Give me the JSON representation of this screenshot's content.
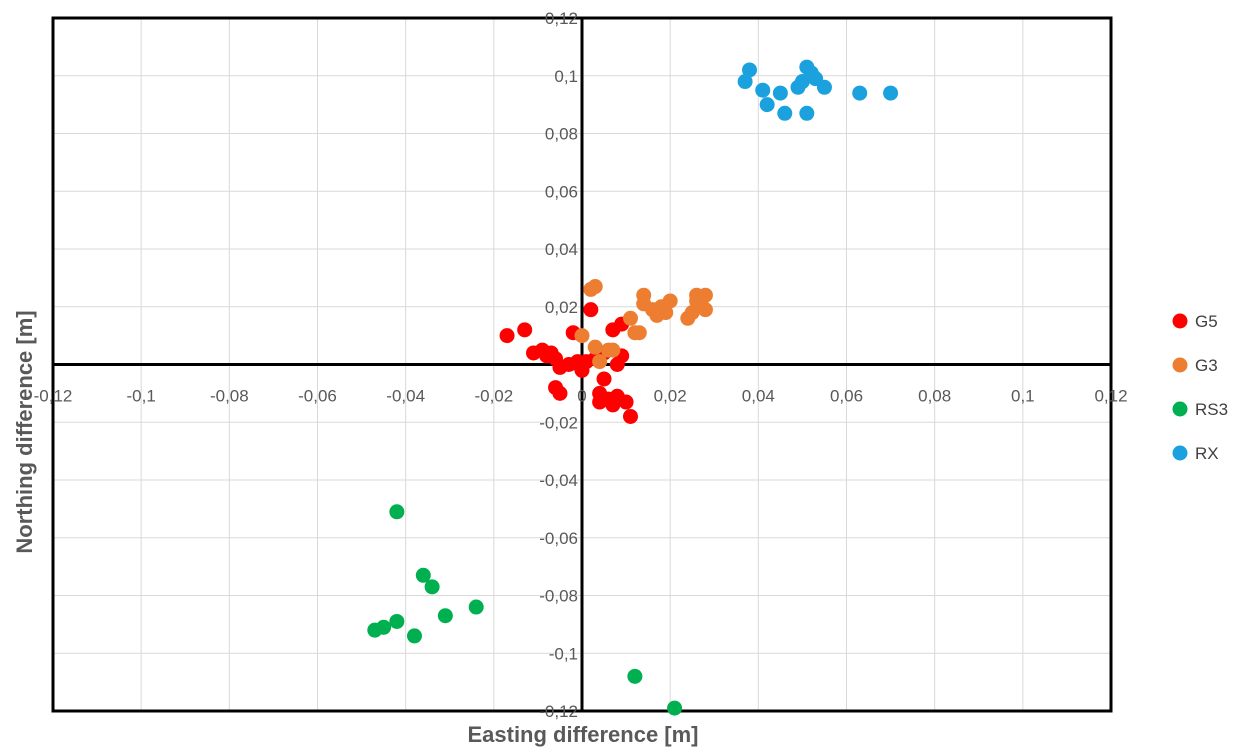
{
  "chart_data": {
    "type": "scatter",
    "title": "",
    "xlabel": "Easting difference [m]",
    "ylabel": "Northing difference [m]",
    "xlim": [
      -0.12,
      0.12
    ],
    "ylim": [
      -0.12,
      0.12
    ],
    "x_ticks": [
      "-0,12",
      "-0,1",
      "-0,08",
      "-0,06",
      "-0,04",
      "-0,02",
      "0",
      "0,02",
      "0,04",
      "0,06",
      "0,08",
      "0,1",
      "0,12"
    ],
    "y_ticks": [
      "0,12",
      "0,1",
      "0,08",
      "0,06",
      "0,04",
      "0,02",
      "0",
      "-0,02",
      "-0,04",
      "-0,06",
      "-0,08",
      "-0,1",
      "-0,12"
    ],
    "grid": true,
    "legend_position": "right",
    "series": [
      {
        "name": "G5",
        "color": "#FF0000",
        "points": [
          [
            -0.017,
            0.01
          ],
          [
            -0.013,
            0.012
          ],
          [
            -0.011,
            0.004
          ],
          [
            -0.009,
            0.005
          ],
          [
            -0.008,
            0.003
          ],
          [
            -0.007,
            0.004
          ],
          [
            -0.006,
            0.002
          ],
          [
            -0.005,
            -0.001
          ],
          [
            -0.006,
            -0.008
          ],
          [
            -0.005,
            -0.01
          ],
          [
            -0.003,
            0.0
          ],
          [
            -0.002,
            0.011
          ],
          [
            -0.001,
            0.001
          ],
          [
            0.0,
            -0.002
          ],
          [
            0.001,
            0.001
          ],
          [
            0.002,
            0.019
          ],
          [
            0.003,
            0.002
          ],
          [
            0.004,
            -0.01
          ],
          [
            0.004,
            -0.013
          ],
          [
            0.005,
            -0.005
          ],
          [
            0.006,
            -0.012
          ],
          [
            0.007,
            0.012
          ],
          [
            0.007,
            -0.014
          ],
          [
            0.008,
            0.0
          ],
          [
            0.008,
            -0.011
          ],
          [
            0.009,
            0.014
          ],
          [
            0.009,
            0.003
          ],
          [
            0.01,
            -0.013
          ],
          [
            0.011,
            -0.018
          ],
          [
            0.005,
            0.004
          ]
        ]
      },
      {
        "name": "G3",
        "color": "#ED7D31",
        "points": [
          [
            0.0,
            0.01
          ],
          [
            0.002,
            0.026
          ],
          [
            0.003,
            0.027
          ],
          [
            0.003,
            0.006
          ],
          [
            0.004,
            0.001
          ],
          [
            0.006,
            0.005
          ],
          [
            0.007,
            0.005
          ],
          [
            0.011,
            0.016
          ],
          [
            0.012,
            0.011
          ],
          [
            0.013,
            0.011
          ],
          [
            0.014,
            0.024
          ],
          [
            0.014,
            0.021
          ],
          [
            0.016,
            0.019
          ],
          [
            0.017,
            0.017
          ],
          [
            0.018,
            0.02
          ],
          [
            0.019,
            0.018
          ],
          [
            0.02,
            0.022
          ],
          [
            0.024,
            0.016
          ],
          [
            0.025,
            0.018
          ],
          [
            0.026,
            0.024
          ],
          [
            0.026,
            0.022
          ],
          [
            0.027,
            0.021
          ],
          [
            0.028,
            0.019
          ],
          [
            0.028,
            0.024
          ]
        ]
      },
      {
        "name": "RS3",
        "color": "#00B050",
        "points": [
          [
            -0.047,
            -0.092
          ],
          [
            -0.045,
            -0.091
          ],
          [
            -0.042,
            -0.089
          ],
          [
            -0.042,
            -0.051
          ],
          [
            -0.038,
            -0.094
          ],
          [
            -0.036,
            -0.073
          ],
          [
            -0.034,
            -0.077
          ],
          [
            -0.031,
            -0.087
          ],
          [
            -0.024,
            -0.084
          ],
          [
            0.012,
            -0.108
          ],
          [
            0.021,
            -0.119
          ]
        ]
      },
      {
        "name": "RX",
        "color": "#1CA1DF",
        "points": [
          [
            0.037,
            0.098
          ],
          [
            0.038,
            0.102
          ],
          [
            0.041,
            0.095
          ],
          [
            0.042,
            0.09
          ],
          [
            0.045,
            0.094
          ],
          [
            0.046,
            0.087
          ],
          [
            0.049,
            0.096
          ],
          [
            0.05,
            0.098
          ],
          [
            0.051,
            0.103
          ],
          [
            0.051,
            0.087
          ],
          [
            0.052,
            0.101
          ],
          [
            0.053,
            0.099
          ],
          [
            0.055,
            0.096
          ],
          [
            0.063,
            0.094
          ],
          [
            0.07,
            0.094
          ]
        ]
      }
    ]
  }
}
